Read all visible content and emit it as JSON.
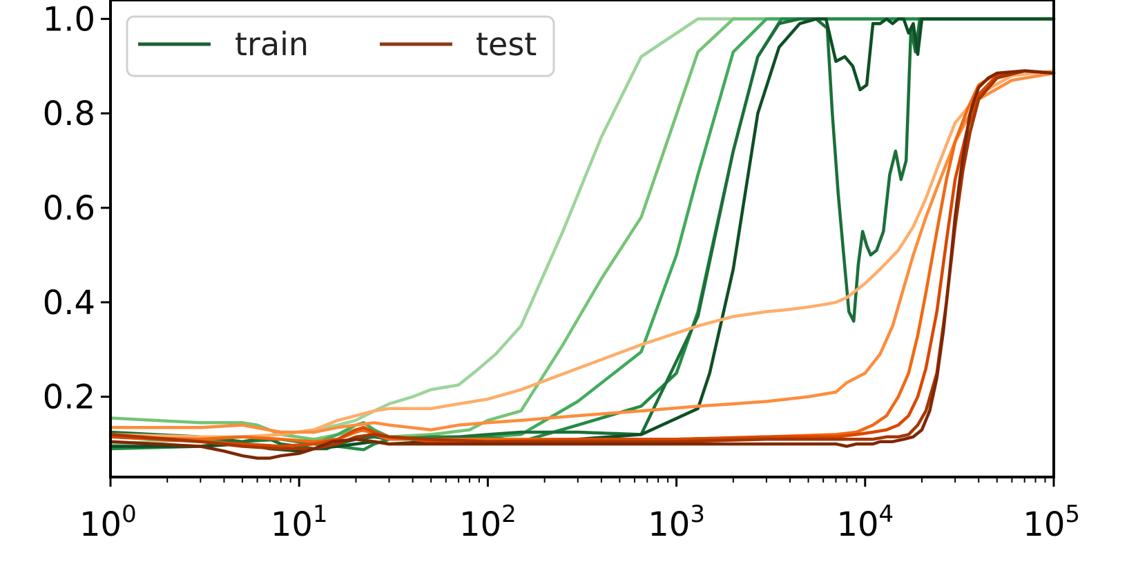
{
  "chart_data": {
    "type": "line",
    "title": "",
    "xlabel": "",
    "ylabel": "",
    "x_scale": "log",
    "xlim": [
      1,
      100000
    ],
    "ylim": [
      0.03,
      1.04
    ],
    "grid": false,
    "legend_position": "top-left",
    "yticks": [
      0.2,
      0.4,
      0.6,
      0.8,
      1.0
    ],
    "yticklabels": [
      "0.2",
      "0.4",
      "0.6",
      "0.8",
      "1.0"
    ],
    "xticks": [
      1,
      10,
      100,
      1000,
      10000,
      100000
    ],
    "xticklabels": [
      {
        "base": "10",
        "exp": "0"
      },
      {
        "base": "10",
        "exp": "1"
      },
      {
        "base": "10",
        "exp": "2"
      },
      {
        "base": "10",
        "exp": "3"
      },
      {
        "base": "10",
        "exp": "4"
      },
      {
        "base": "10",
        "exp": "5"
      }
    ],
    "legend": [
      {
        "label": "train",
        "color": "#1e5e35"
      },
      {
        "label": "test",
        "color": "#8b3a16"
      }
    ],
    "series": [
      {
        "group": "train",
        "color": "#9dd49a",
        "x": [
          1,
          3,
          5,
          8,
          12,
          16,
          20,
          25,
          30,
          40,
          50,
          70,
          90,
          110,
          150,
          250,
          400,
          650,
          1300,
          2000,
          100000
        ],
        "y": [
          0.1,
          0.11,
          0.115,
          0.12,
          0.13,
          0.14,
          0.15,
          0.17,
          0.185,
          0.2,
          0.215,
          0.225,
          0.26,
          0.29,
          0.35,
          0.55,
          0.75,
          0.92,
          1.0,
          1.0,
          1.0
        ]
      },
      {
        "group": "train",
        "color": "#74c476",
        "x": [
          1,
          3,
          5,
          6,
          8,
          12,
          16,
          20,
          25,
          30,
          50,
          80,
          100,
          150,
          250,
          400,
          650,
          1300,
          2000,
          100000
        ],
        "y": [
          0.155,
          0.145,
          0.145,
          0.14,
          0.12,
          0.11,
          0.12,
          0.13,
          0.125,
          0.115,
          0.12,
          0.13,
          0.15,
          0.17,
          0.31,
          0.45,
          0.58,
          0.93,
          1.0,
          1.0
        ]
      },
      {
        "group": "train",
        "color": "#41ab5d",
        "x": [
          1,
          3,
          5,
          8,
          12,
          16,
          20,
          22,
          25,
          30,
          50,
          80,
          100,
          150,
          300,
          650,
          1000,
          1300,
          2000,
          3000,
          100000
        ],
        "y": [
          0.12,
          0.11,
          0.1,
          0.095,
          0.1,
          0.12,
          0.14,
          0.145,
          0.13,
          0.115,
          0.105,
          0.105,
          0.115,
          0.12,
          0.19,
          0.295,
          0.5,
          0.67,
          0.93,
          1.0,
          1.0
        ]
      },
      {
        "group": "train",
        "color": "#238b45",
        "x": [
          1,
          3,
          5,
          8,
          12,
          16,
          20,
          22,
          25,
          30,
          50,
          100,
          150,
          300,
          650,
          1000,
          1300,
          2000,
          2700,
          3600,
          4500,
          100000
        ],
        "y": [
          0.09,
          0.095,
          0.105,
          0.11,
          0.1,
          0.095,
          0.09,
          0.088,
          0.1,
          0.11,
          0.115,
          0.115,
          0.105,
          0.14,
          0.18,
          0.25,
          0.38,
          0.72,
          0.92,
          1.0,
          1.0,
          1.0
        ]
      },
      {
        "group": "train",
        "color": "#1c6f3a",
        "x": [
          1,
          3,
          5,
          6,
          7,
          8,
          10,
          12,
          14,
          16,
          20,
          25,
          30,
          50,
          70,
          100,
          150,
          300,
          650,
          1300,
          2000,
          2700,
          3500,
          4500,
          5500,
          6300,
          6700,
          7200,
          7700,
          8200,
          8700,
          9200,
          9700,
          10200,
          10700,
          11500,
          12500,
          13500,
          14500,
          15500,
          16500,
          17500,
          18500,
          19500,
          20500,
          100000
        ],
        "y": [
          0.125,
          0.115,
          0.105,
          0.11,
          0.11,
          0.1,
          0.095,
          0.09,
          0.09,
          0.1,
          0.11,
          0.115,
          0.11,
          0.11,
          0.115,
          0.12,
          0.125,
          0.125,
          0.12,
          0.37,
          0.72,
          0.92,
          0.99,
          1.0,
          1.0,
          0.98,
          0.8,
          0.63,
          0.5,
          0.38,
          0.36,
          0.48,
          0.55,
          0.52,
          0.5,
          0.51,
          0.55,
          0.67,
          0.72,
          0.66,
          0.7,
          0.98,
          0.93,
          1.0,
          1.0,
          1.0
        ]
      },
      {
        "group": "train",
        "color": "#0e4f25",
        "x": [
          1,
          3,
          5,
          7,
          10,
          12,
          16,
          20,
          25,
          30,
          50,
          100,
          150,
          300,
          650,
          1300,
          1500,
          2000,
          2700,
          3500,
          4500,
          5500,
          6200,
          7000,
          7800,
          8600,
          9400,
          10200,
          11000,
          12000,
          13000,
          14000,
          15000,
          16000,
          17000,
          18000,
          19000,
          20000,
          100000
        ],
        "y": [
          0.095,
          0.095,
          0.1,
          0.09,
          0.085,
          0.09,
          0.095,
          0.1,
          0.105,
          0.1,
          0.105,
          0.105,
          0.105,
          0.11,
          0.12,
          0.175,
          0.25,
          0.47,
          0.8,
          0.94,
          0.99,
          1.0,
          1.0,
          0.91,
          0.92,
          0.9,
          0.85,
          0.86,
          0.99,
          0.99,
          1.0,
          0.99,
          1.0,
          1.0,
          0.97,
          0.99,
          0.925,
          1.0,
          1.0
        ]
      },
      {
        "group": "test",
        "color": "#fdae6b",
        "x": [
          1,
          3,
          5,
          8,
          12,
          16,
          20,
          25,
          30,
          50,
          70,
          100,
          150,
          300,
          650,
          1300,
          2000,
          3000,
          4000,
          5000,
          6000,
          7000,
          8000,
          10000,
          12000,
          15000,
          18000,
          21000,
          25000,
          30000,
          40000,
          60000,
          100000
        ],
        "y": [
          0.12,
          0.115,
          0.115,
          0.12,
          0.13,
          0.15,
          0.16,
          0.17,
          0.175,
          0.175,
          0.185,
          0.195,
          0.215,
          0.26,
          0.31,
          0.35,
          0.37,
          0.38,
          0.385,
          0.39,
          0.395,
          0.4,
          0.41,
          0.44,
          0.47,
          0.51,
          0.56,
          0.62,
          0.7,
          0.78,
          0.84,
          0.88,
          0.89
        ]
      },
      {
        "group": "test",
        "color": "#fd8d3c",
        "x": [
          1,
          3,
          5,
          8,
          12,
          16,
          20,
          25,
          30,
          50,
          70,
          100,
          150,
          300,
          650,
          1300,
          2000,
          3000,
          5000,
          7000,
          8000,
          10000,
          12000,
          14000,
          16000,
          18000,
          21000,
          25000,
          30000,
          35000,
          40000,
          60000,
          100000
        ],
        "y": [
          0.135,
          0.135,
          0.14,
          0.125,
          0.125,
          0.135,
          0.14,
          0.145,
          0.14,
          0.13,
          0.14,
          0.145,
          0.15,
          0.16,
          0.17,
          0.18,
          0.185,
          0.19,
          0.2,
          0.21,
          0.23,
          0.25,
          0.29,
          0.35,
          0.43,
          0.5,
          0.58,
          0.66,
          0.74,
          0.79,
          0.83,
          0.87,
          0.885
        ]
      },
      {
        "group": "test",
        "color": "#f16913",
        "x": [
          1,
          3,
          5,
          8,
          12,
          16,
          20,
          22,
          25,
          30,
          50,
          100,
          300,
          1000,
          3000,
          7000,
          9000,
          11000,
          13000,
          15000,
          17000,
          19000,
          21000,
          24000,
          27000,
          30000,
          35000,
          40000,
          50000,
          70000,
          100000
        ],
        "y": [
          0.115,
          0.11,
          0.115,
          0.11,
          0.105,
          0.11,
          0.125,
          0.13,
          0.12,
          0.11,
          0.11,
          0.11,
          0.11,
          0.11,
          0.115,
          0.12,
          0.125,
          0.14,
          0.16,
          0.2,
          0.25,
          0.33,
          0.42,
          0.55,
          0.66,
          0.74,
          0.81,
          0.86,
          0.885,
          0.89,
          0.885
        ]
      },
      {
        "group": "test",
        "color": "#d94801",
        "x": [
          1,
          3,
          5,
          8,
          12,
          16,
          20,
          22,
          25,
          30,
          50,
          100,
          300,
          1000,
          3000,
          7000,
          9000,
          11000,
          13000,
          15000,
          17000,
          19000,
          21000,
          24000,
          27000,
          30000,
          35000,
          40000,
          50000,
          70000,
          100000
        ],
        "y": [
          0.115,
          0.105,
          0.1,
          0.095,
          0.1,
          0.11,
          0.13,
          0.135,
          0.125,
          0.115,
          0.105,
          0.105,
          0.11,
          0.11,
          0.115,
          0.115,
          0.12,
          0.125,
          0.13,
          0.14,
          0.16,
          0.2,
          0.26,
          0.38,
          0.53,
          0.66,
          0.77,
          0.84,
          0.88,
          0.89,
          0.885
        ]
      },
      {
        "group": "test",
        "color": "#a63603",
        "x": [
          1,
          3,
          5,
          8,
          12,
          16,
          20,
          25,
          30,
          50,
          100,
          300,
          1000,
          3000,
          7000,
          9000,
          11000,
          13000,
          15000,
          17000,
          19000,
          21000,
          24000,
          27000,
          30000,
          33000,
          36000,
          40000,
          50000,
          70000,
          100000
        ],
        "y": [
          0.12,
          0.105,
          0.095,
          0.09,
          0.09,
          0.1,
          0.115,
          0.12,
          0.115,
          0.11,
          0.105,
          0.105,
          0.105,
          0.11,
          0.11,
          0.11,
          0.11,
          0.115,
          0.115,
          0.12,
          0.14,
          0.17,
          0.25,
          0.4,
          0.56,
          0.68,
          0.76,
          0.83,
          0.875,
          0.89,
          0.885
        ]
      },
      {
        "group": "test",
        "color": "#7f2704",
        "x": [
          1,
          3,
          4,
          5,
          6,
          7,
          8,
          10,
          12,
          15,
          20,
          25,
          30,
          50,
          100,
          300,
          1000,
          3000,
          7000,
          8000,
          9000,
          10000,
          11000,
          12000,
          14000,
          16000,
          18000,
          20000,
          22000,
          24000,
          26000,
          28000,
          30000,
          32000,
          34000,
          36000,
          38000,
          40000,
          45000,
          50000,
          70000,
          100000
        ],
        "y": [
          0.105,
          0.095,
          0.085,
          0.075,
          0.07,
          0.07,
          0.075,
          0.08,
          0.09,
          0.105,
          0.11,
          0.105,
          0.1,
          0.1,
          0.1,
          0.1,
          0.1,
          0.1,
          0.1,
          0.095,
          0.1,
          0.1,
          0.1,
          0.105,
          0.105,
          0.11,
          0.115,
          0.13,
          0.17,
          0.24,
          0.34,
          0.46,
          0.58,
          0.67,
          0.74,
          0.8,
          0.83,
          0.855,
          0.875,
          0.885,
          0.89,
          0.885
        ]
      }
    ]
  }
}
